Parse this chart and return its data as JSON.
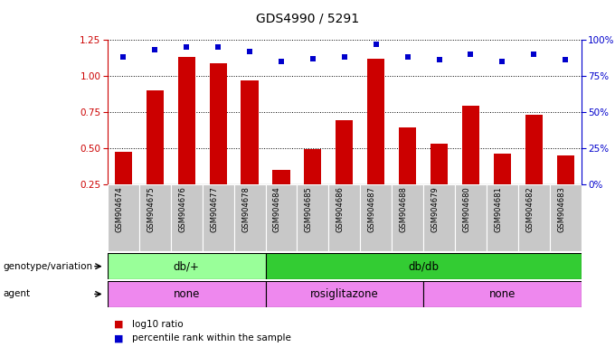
{
  "title": "GDS4990 / 5291",
  "samples": [
    "GSM904674",
    "GSM904675",
    "GSM904676",
    "GSM904677",
    "GSM904678",
    "GSM904684",
    "GSM904685",
    "GSM904686",
    "GSM904687",
    "GSM904688",
    "GSM904679",
    "GSM904680",
    "GSM904681",
    "GSM904682",
    "GSM904683"
  ],
  "log10_ratio": [
    0.47,
    0.9,
    1.13,
    1.09,
    0.97,
    0.35,
    0.49,
    0.69,
    1.12,
    0.64,
    0.53,
    0.79,
    0.46,
    0.73,
    0.45
  ],
  "percentile": [
    88,
    93,
    95,
    95,
    92,
    85,
    87,
    88,
    97,
    88,
    86,
    90,
    85,
    90,
    86
  ],
  "genotype_groups": [
    {
      "label": "db/+",
      "start": 0,
      "end": 5
    },
    {
      "label": "db/db",
      "start": 5,
      "end": 15
    }
  ],
  "agent_groups": [
    {
      "label": "none",
      "start": 0,
      "end": 5
    },
    {
      "label": "rosiglitazone",
      "start": 5,
      "end": 10
    },
    {
      "label": "none",
      "start": 10,
      "end": 15
    }
  ],
  "bar_color": "#cc0000",
  "dot_color": "#0000cc",
  "genotype_colors": [
    "#99ff99",
    "#33cc33"
  ],
  "agent_color": "#ee88ee",
  "ylim_left": [
    0.25,
    1.25
  ],
  "ylim_right": [
    0,
    100
  ],
  "yticks_left": [
    0.25,
    0.5,
    0.75,
    1.0,
    1.25
  ],
  "yticks_right": [
    0,
    25,
    50,
    75,
    100
  ],
  "legend_log10": "log10 ratio",
  "legend_pct": "percentile rank within the sample",
  "bg_gray": "#c8c8c8"
}
